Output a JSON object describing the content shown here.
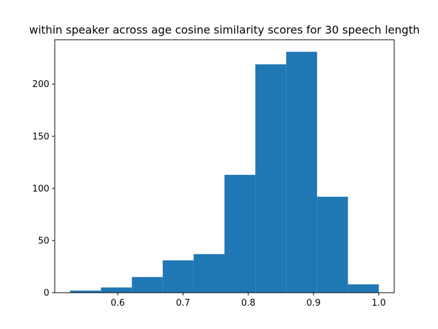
{
  "chart_data": {
    "type": "bar",
    "title": "within speaker across age cosine similarity scores for 30 speech length",
    "xlabel": "",
    "ylabel": "",
    "bin_edges": [
      0.527,
      0.5743,
      0.6216,
      0.6689,
      0.7162,
      0.7635,
      0.8108,
      0.8581,
      0.9054,
      0.9527,
      1.0
    ],
    "values": [
      2,
      5,
      15,
      31,
      37,
      113,
      219,
      231,
      92,
      8
    ],
    "xlim": [
      0.5034,
      1.0236
    ],
    "ylim": [
      0,
      242.55
    ],
    "xticks": [
      0.6,
      0.7,
      0.8,
      0.9,
      1.0
    ],
    "xtick_labels": [
      "0.6",
      "0.7",
      "0.8",
      "0.9",
      "1.0"
    ],
    "yticks": [
      0,
      50,
      100,
      150,
      200
    ],
    "ytick_labels": [
      "0",
      "50",
      "100",
      "150",
      "200"
    ],
    "bar_color": "#1f77b4",
    "grid": false,
    "legend": "none"
  }
}
